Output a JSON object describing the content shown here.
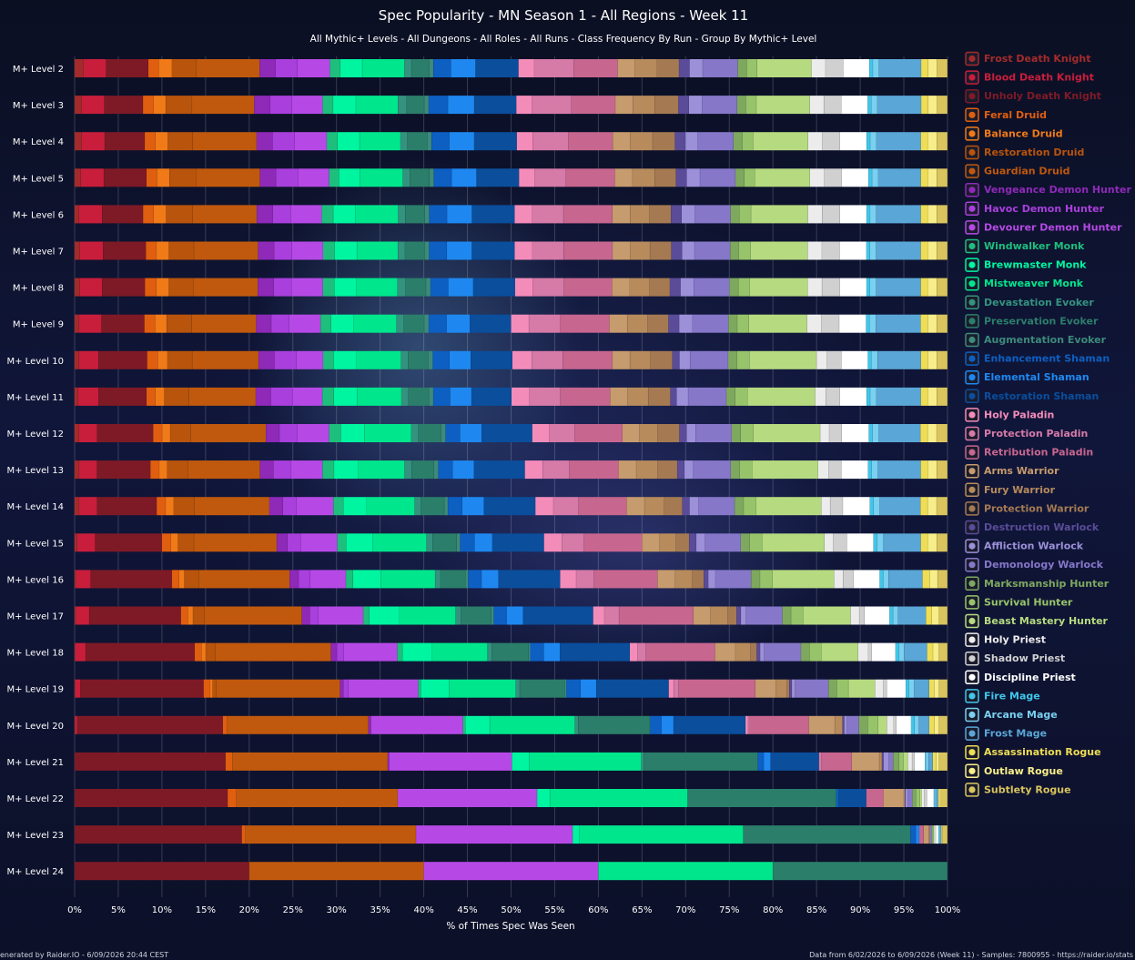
{
  "chart_data": {
    "type": "bar",
    "stacked": true,
    "orientation": "horizontal",
    "title": "Spec Popularity - MN Season 1 - All Regions - Week 11",
    "subtitle": "All Mythic+ Levels - All Dungeons - All Roles - All Runs - Class Frequency By Run - Group By Mythic+ Level",
    "xlabel": "% of Times Spec Was Seen",
    "xlim": [
      0,
      100
    ],
    "x_ticks": [
      "0%",
      "5%",
      "10%",
      "15%",
      "20%",
      "25%",
      "30%",
      "35%",
      "40%",
      "45%",
      "50%",
      "55%",
      "60%",
      "65%",
      "70%",
      "75%",
      "80%",
      "85%",
      "90%",
      "95%",
      "100%"
    ],
    "legend_placement": "right",
    "categories": [
      "M+ Level 2",
      "M+ Level 3",
      "M+ Level 4",
      "M+ Level 5",
      "M+ Level 6",
      "M+ Level 7",
      "M+ Level 8",
      "M+ Level 9",
      "M+ Level 10",
      "M+ Level 11",
      "M+ Level 12",
      "M+ Level 13",
      "M+ Level 14",
      "M+ Level 15",
      "M+ Level 16",
      "M+ Level 17",
      "M+ Level 18",
      "M+ Level 19",
      "M+ Level 20",
      "M+ Level 21",
      "M+ Level 22",
      "M+ Level 23",
      "M+ Level 24"
    ],
    "series": [
      {
        "name": "Frost Death Knight",
        "color": "#a32b2b",
        "values": [
          1.0,
          0.8,
          0.8,
          0.7,
          0.5,
          0.6,
          0.6,
          0.5,
          0.5,
          0.4,
          0.5,
          0.5,
          0.5,
          0.3,
          0.2,
          0.2,
          0.1,
          0.1,
          0.1,
          0.0,
          0.0,
          0.0,
          0.0
        ]
      },
      {
        "name": "Blood Death Knight",
        "color": "#c81e3c",
        "values": [
          2.6,
          2.6,
          2.6,
          2.6,
          2.6,
          2.6,
          2.5,
          2.5,
          2.2,
          2.3,
          2.0,
          2.0,
          2.0,
          2.0,
          1.6,
          1.5,
          1.2,
          0.6,
          0.2,
          0.0,
          0.0,
          0.0,
          0.0
        ]
      },
      {
        "name": "Unholy Death Knight",
        "color": "#7e1a26",
        "values": [
          4.8,
          4.4,
          4.5,
          4.8,
          4.6,
          4.8,
          4.8,
          4.8,
          5.5,
          5.4,
          6.2,
          6.0,
          6.6,
          7.5,
          9.1,
          10.6,
          12.8,
          14.8,
          16.8,
          17.5,
          17.9,
          19.0,
          20.0
        ]
      },
      {
        "name": "Feral Druid",
        "color": "#e05e10",
        "values": [
          1.2,
          1.2,
          1.2,
          1.2,
          1.2,
          1.2,
          1.3,
          1.2,
          1.2,
          1.0,
          1.0,
          1.0,
          1.0,
          1.0,
          0.8,
          0.8,
          0.8,
          0.8,
          0.5,
          0.8,
          1.0,
          0.4,
          0.0
        ]
      },
      {
        "name": "Balance Druid",
        "color": "#f07a18",
        "values": [
          1.5,
          1.4,
          1.4,
          1.4,
          1.4,
          1.4,
          1.4,
          1.3,
          1.1,
          1.0,
          0.9,
          0.9,
          0.9,
          0.8,
          0.6,
          0.6,
          0.5,
          0.3,
          0.0,
          0.0,
          0.0,
          0.0,
          0.0
        ]
      },
      {
        "name": "Restoration Druid",
        "color": "#b8540c",
        "values": [
          2.8,
          3.0,
          2.8,
          3.0,
          3.0,
          2.8,
          2.8,
          2.8,
          2.8,
          2.8,
          2.3,
          2.3,
          2.3,
          1.8,
          1.6,
          1.3,
          1.1,
          0.4,
          0.0,
          0.0,
          0.0,
          0.0,
          0.0
        ]
      },
      {
        "name": "Guardian Druid",
        "color": "#c0590e",
        "values": [
          7.2,
          7.1,
          7.2,
          7.2,
          7.2,
          7.2,
          7.2,
          7.2,
          7.5,
          7.5,
          8.3,
          8.1,
          8.3,
          9.3,
          10.2,
          11.3,
          13.6,
          14.9,
          16.3,
          18.0,
          18.9,
          19.4,
          20.0
        ]
      },
      {
        "name": "Vengeance Demon Hunter",
        "color": "#8e29b8",
        "values": [
          1.8,
          1.8,
          1.8,
          1.8,
          1.8,
          1.8,
          1.8,
          1.7,
          1.8,
          1.7,
          1.5,
          1.5,
          1.5,
          1.2,
          1.0,
          0.9,
          0.7,
          0.4,
          0.3,
          0.2,
          0.0,
          0.0,
          0.0
        ]
      },
      {
        "name": "Havoc Demon Hunter",
        "color": "#a93fdc",
        "values": [
          2.5,
          2.5,
          2.5,
          2.5,
          2.0,
          2.0,
          2.0,
          2.0,
          2.5,
          2.5,
          2.0,
          2.0,
          1.5,
          1.5,
          1.3,
          1.0,
          0.8,
          0.6,
          0.0,
          0.0,
          0.0,
          0.0,
          0.0
        ]
      },
      {
        "name": "Devourer Demon Hunter",
        "color": "#b649e6",
        "values": [
          3.7,
          3.5,
          3.6,
          3.5,
          3.5,
          3.5,
          3.5,
          3.5,
          3.0,
          3.3,
          3.5,
          3.5,
          4.1,
          4.1,
          4.0,
          5.2,
          6.3,
          8.4,
          10.6,
          14.2,
          16.3,
          17.8,
          20.0
        ]
      },
      {
        "name": "Windwalker Monk",
        "color": "#1ebf7d",
        "values": [
          1.2,
          1.2,
          1.2,
          1.1,
          1.3,
          1.3,
          1.3,
          1.2,
          1.2,
          1.3,
          1.3,
          1.3,
          1.1,
          1.0,
          0.8,
          0.7,
          0.6,
          0.3,
          0.3,
          0.0,
          0.0,
          0.0,
          0.0
        ]
      },
      {
        "name": "Brewmaster Monk",
        "color": "#00f5a0",
        "values": [
          2.5,
          2.6,
          2.5,
          2.4,
          2.5,
          2.5,
          2.5,
          2.5,
          2.6,
          2.6,
          2.6,
          2.7,
          2.6,
          3.0,
          3.1,
          3.5,
          3.5,
          3.4,
          2.8,
          2.0,
          1.5,
          0.8,
          0.0
        ]
      },
      {
        "name": "Mistweaver Monk",
        "color": "#00e68c",
        "values": [
          4.8,
          4.8,
          4.6,
          4.8,
          4.8,
          4.6,
          4.6,
          4.8,
          5.0,
          5.0,
          5.2,
          5.2,
          5.3,
          6.0,
          6.1,
          6.5,
          6.5,
          8.0,
          9.8,
          13.0,
          16.1,
          18.6,
          20.0
        ]
      },
      {
        "name": "Devastation Evoker",
        "color": "#33937f",
        "values": [
          0.8,
          1.0,
          0.8,
          0.8,
          0.8,
          0.8,
          0.9,
          0.8,
          0.8,
          0.8,
          0.8,
          0.8,
          0.7,
          0.7,
          0.6,
          0.6,
          0.5,
          0.5,
          0.4,
          0.3,
          0.0,
          0.0,
          0.0
        ]
      },
      {
        "name": "Preservation Evoker",
        "color": "#2b7e6a",
        "values": [
          2.0,
          2.0,
          2.2,
          2.2,
          2.2,
          2.2,
          2.3,
          2.3,
          2.3,
          2.3,
          2.5,
          2.5,
          2.6,
          2.7,
          2.8,
          3.5,
          4.3,
          5.4,
          8.2,
          13.2,
          17.4,
          19.0,
          20.0
        ]
      },
      {
        "name": "Augmentation Evoker",
        "color": "#3d8a7a",
        "values": [
          0.5,
          0.5,
          0.5,
          0.5,
          0.5,
          0.5,
          0.5,
          0.5,
          0.5,
          0.5,
          0.5,
          0.5,
          0.4,
          0.4,
          0.3,
          0.3,
          0.2,
          0.2,
          0.1,
          0.0,
          0.0,
          0.0,
          0.0
        ]
      },
      {
        "name": "Enhancement Shaman",
        "color": "#0d5fc2",
        "values": [
          2.0,
          2.2,
          2.0,
          2.0,
          2.0,
          2.0,
          2.0,
          2.0,
          1.9,
          1.9,
          1.6,
          1.6,
          1.6,
          1.6,
          1.5,
          1.5,
          1.6,
          1.7,
          1.3,
          0.7,
          0.3,
          0.6,
          0.0
        ]
      },
      {
        "name": "Elemental Shaman",
        "color": "#1e88f0",
        "values": [
          2.8,
          3.0,
          2.8,
          2.8,
          2.8,
          2.8,
          2.8,
          2.6,
          2.4,
          2.4,
          2.4,
          2.4,
          2.4,
          2.0,
          1.9,
          1.9,
          1.9,
          1.9,
          1.4,
          0.8,
          0.0,
          0.4,
          0.0
        ]
      },
      {
        "name": "Restoration Shaman",
        "color": "#0a4e9c",
        "values": [
          4.9,
          4.8,
          4.8,
          4.8,
          4.8,
          4.8,
          4.7,
          4.6,
          4.7,
          4.5,
          5.6,
          5.7,
          5.7,
          5.8,
          6.9,
          8.1,
          8.2,
          8.7,
          8.3,
          5.6,
          3.2,
          0.0,
          0.0
        ]
      },
      {
        "name": "Holy Paladin",
        "color": "#f48cba",
        "values": [
          1.8,
          1.8,
          1.8,
          1.8,
          2.0,
          2.0,
          2.0,
          2.0,
          2.2,
          2.0,
          1.9,
          2.0,
          2.0,
          2.0,
          1.8,
          1.3,
          0.9,
          0.6,
          0.2,
          0.0,
          0.0,
          0.0,
          0.0
        ]
      },
      {
        "name": "Protection Paladin",
        "color": "#d67aa8",
        "values": [
          4.5,
          4.5,
          4.0,
          3.5,
          3.5,
          3.5,
          3.5,
          3.5,
          3.5,
          3.5,
          2.8,
          3.0,
          2.8,
          2.5,
          2.0,
          1.7,
          1.0,
          0.6,
          0.2,
          0.3,
          0.0,
          0.0,
          0.0
        ]
      },
      {
        "name": "Retribution Paladin",
        "color": "#c7668f",
        "values": [
          5.0,
          5.0,
          5.0,
          5.5,
          5.5,
          5.5,
          5.4,
          5.5,
          5.6,
          5.6,
          5.3,
          5.5,
          5.3,
          6.5,
          7.1,
          8.6,
          8.1,
          9.2,
          6.9,
          3.5,
          2.0,
          0.5,
          0.0
        ]
      },
      {
        "name": "Arms Warrior",
        "color": "#c69b6d",
        "values": [
          2.0,
          2.0,
          2.0,
          2.0,
          2.0,
          2.0,
          2.0,
          2.0,
          2.0,
          2.0,
          1.9,
          2.0,
          2.0,
          2.0,
          2.0,
          2.0,
          2.4,
          2.5,
          3.0,
          3.2,
          2.4,
          0.6,
          0.0
        ]
      },
      {
        "name": "Fury Warrior",
        "color": "#b78b5c",
        "values": [
          2.5,
          2.5,
          2.5,
          2.5,
          2.2,
          2.2,
          2.2,
          2.3,
          2.3,
          2.3,
          2.0,
          2.4,
          2.2,
          1.8,
          1.9,
          2.0,
          1.8,
          1.3,
          0.9,
          0.3,
          0.1,
          0.1,
          0.0
        ]
      },
      {
        "name": "Protection Warrior",
        "color": "#a57a52",
        "values": [
          2.5,
          2.7,
          2.5,
          2.4,
          2.4,
          2.4,
          2.3,
          2.3,
          2.5,
          2.5,
          2.4,
          2.2,
          2.0,
          1.5,
          1.3,
          1.0,
          0.7,
          0.3,
          0.0,
          0.0,
          0.0,
          0.0,
          0.0
        ]
      },
      {
        "name": "Destruction Warlock",
        "color": "#5a4c99",
        "values": [
          1.2,
          1.2,
          1.2,
          1.2,
          1.2,
          1.2,
          1.2,
          1.2,
          0.8,
          0.7,
          0.8,
          0.8,
          0.8,
          0.8,
          0.5,
          0.5,
          0.4,
          0.3,
          0.2,
          0.2,
          0.1,
          0.0,
          0.0
        ]
      },
      {
        "name": "Affliction Warlock",
        "color": "#9c90d9",
        "values": [
          1.5,
          1.5,
          1.4,
          1.5,
          1.5,
          1.4,
          1.5,
          1.5,
          1.2,
          1.3,
          1.0,
          1.0,
          1.0,
          1.0,
          0.8,
          0.6,
          0.5,
          0.4,
          0.3,
          0.6,
          0.3,
          0.0,
          0.0
        ]
      },
      {
        "name": "Demonology Warlock",
        "color": "#8677c9",
        "values": [
          4.0,
          4.0,
          4.0,
          4.0,
          4.0,
          4.0,
          4.0,
          4.0,
          4.3,
          4.3,
          4.0,
          4.2,
          4.0,
          4.0,
          4.0,
          4.2,
          4.3,
          4.0,
          1.4,
          0.5,
          0.5,
          0.2,
          0.0
        ]
      },
      {
        "name": "Marksmanship Hunter",
        "color": "#7ea85e",
        "values": [
          1.0,
          1.0,
          1.0,
          1.0,
          1.0,
          1.0,
          1.0,
          1.0,
          1.0,
          1.0,
          1.0,
          1.0,
          1.0,
          1.0,
          1.0,
          1.0,
          1.0,
          1.0,
          1.0,
          0.7,
          0.4,
          0.2,
          0.0
        ]
      },
      {
        "name": "Survival Hunter",
        "color": "#97c46a",
        "values": [
          1.2,
          1.2,
          1.2,
          1.2,
          1.3,
          1.3,
          1.3,
          1.3,
          1.4,
          1.4,
          1.4,
          1.4,
          1.4,
          1.4,
          1.4,
          1.4,
          1.4,
          1.4,
          1.2,
          0.5,
          0.5,
          0.1,
          0.0
        ]
      },
      {
        "name": "Beast Mastery Hunter",
        "color": "#b6da80",
        "values": [
          6.2,
          6.1,
          6.2,
          6.2,
          6.4,
          6.4,
          6.5,
          6.5,
          7.6,
          7.6,
          7.4,
          7.4,
          7.2,
          7.0,
          6.9,
          5.5,
          4.3,
          3.2,
          1.0,
          0.5,
          0.2,
          0.0,
          0.0
        ]
      },
      {
        "name": "Holy Priest",
        "color": "#ececec",
        "values": [
          1.6,
          1.6,
          1.6,
          1.6,
          1.6,
          1.6,
          1.6,
          1.6,
          1.2,
          1.2,
          1.0,
          1.2,
          1.0,
          1.0,
          1.0,
          1.0,
          1.2,
          1.0,
          0.8,
          0.5,
          0.3,
          0.1,
          0.0
        ]
      },
      {
        "name": "Shadow Priest",
        "color": "#d0d0d0",
        "values": [
          2.0,
          2.0,
          2.0,
          2.0,
          2.0,
          2.0,
          2.0,
          2.0,
          1.6,
          1.6,
          1.4,
          1.4,
          1.4,
          1.5,
          1.2,
          0.6,
          0.4,
          0.4,
          0.3,
          0.3,
          0.3,
          0.1,
          0.0
        ]
      },
      {
        "name": "Discipline Priest",
        "color": "#ffffff",
        "values": [
          3.0,
          3.0,
          3.0,
          3.0,
          3.0,
          3.0,
          3.0,
          3.0,
          3.0,
          3.0,
          3.0,
          3.0,
          3.0,
          3.0,
          2.9,
          2.9,
          2.8,
          2.3,
          1.7,
          1.2,
          0.8,
          0.3,
          0.0
        ]
      },
      {
        "name": "Fire Mage",
        "color": "#3fc7eb",
        "values": [
          0.4,
          0.4,
          0.4,
          0.4,
          0.4,
          0.4,
          0.4,
          0.4,
          0.4,
          0.4,
          0.4,
          0.4,
          0.4,
          0.4,
          0.4,
          0.4,
          0.4,
          0.4,
          0.4,
          0.1,
          0.1,
          0.1,
          0.0
        ]
      },
      {
        "name": "Arcane Mage",
        "color": "#79d0f0",
        "values": [
          0.7,
          0.7,
          0.7,
          0.7,
          0.7,
          0.7,
          0.7,
          0.7,
          0.7,
          0.7,
          0.7,
          0.7,
          0.7,
          0.7,
          0.6,
          0.6,
          0.6,
          0.6,
          0.5,
          0.3,
          0.1,
          0.1,
          0.0
        ]
      },
      {
        "name": "Frost Mage",
        "color": "#5aa6d6",
        "values": [
          4.8,
          5.0,
          5.0,
          4.8,
          5.0,
          5.0,
          5.0,
          5.0,
          4.9,
          5.0,
          4.6,
          4.8,
          4.5,
          4.2,
          3.8,
          3.2,
          2.7,
          1.8,
          1.2,
          0.5,
          0.3,
          0.1,
          0.0
        ]
      },
      {
        "name": "Assassination Rogue",
        "color": "#eedd55",
        "values": [
          0.8,
          0.8,
          0.8,
          0.8,
          0.8,
          0.8,
          0.8,
          0.8,
          0.8,
          0.8,
          0.8,
          0.8,
          0.8,
          0.8,
          0.8,
          0.7,
          0.7,
          0.6,
          0.6,
          0.4,
          0.1,
          0.1,
          0.0
        ]
      },
      {
        "name": "Outlaw Rogue",
        "color": "#f7ee8a",
        "values": [
          1.0,
          1.0,
          1.0,
          1.0,
          1.0,
          1.0,
          1.0,
          1.0,
          1.0,
          1.0,
          1.0,
          1.0,
          1.0,
          1.0,
          0.9,
          0.8,
          0.7,
          0.6,
          0.5,
          0.3,
          0.1,
          0.0,
          0.0
        ]
      },
      {
        "name": "Subtlety Rogue",
        "color": "#d9c45e",
        "values": [
          1.2,
          1.2,
          1.2,
          1.2,
          1.2,
          1.2,
          1.2,
          1.2,
          1.2,
          1.2,
          1.2,
          1.2,
          1.2,
          1.2,
          1.1,
          1.0,
          1.0,
          1.0,
          1.0,
          1.0,
          0.9,
          0.6,
          0.0
        ]
      }
    ]
  },
  "footer": {
    "left": "enerated by Raider.IO - 6/09/2026 20:44 CEST",
    "right": "Data from 6/02/2026 to 6/09/2026 (Week 11) - Samples: 7800955 - https://raider.io/stats"
  }
}
